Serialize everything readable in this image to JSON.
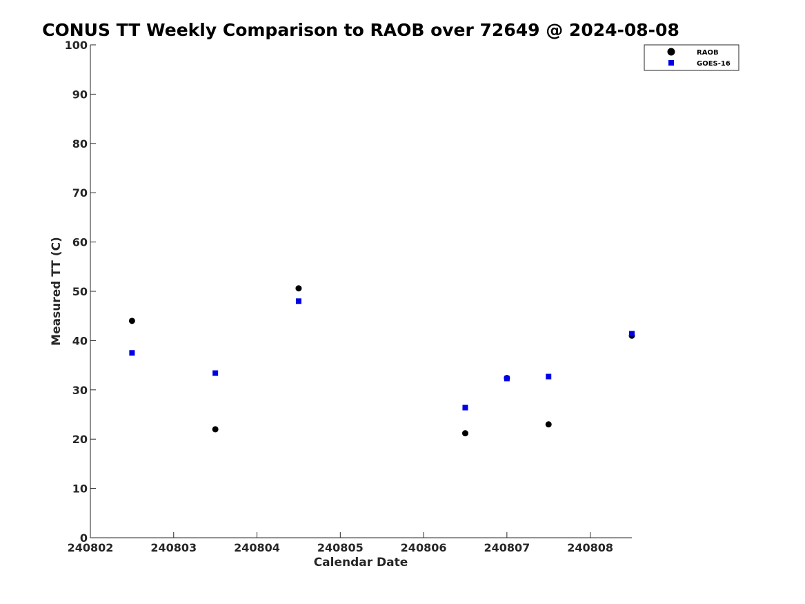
{
  "chart_data": {
    "type": "scatter",
    "title": "CONUS TT Weekly Comparison to RAOB over 72649 @ 2024-08-08",
    "xlabel": "Calendar Date",
    "ylabel": "Measured TT (C)",
    "xlim": [
      "240802",
      "240808.5"
    ],
    "ylim": [
      0,
      100
    ],
    "xticks": [
      "240802",
      "240803",
      "240804",
      "240805",
      "240806",
      "240807",
      "240808"
    ],
    "yticks": [
      0,
      10,
      20,
      30,
      40,
      50,
      60,
      70,
      80,
      90,
      100
    ],
    "grid": false,
    "legend_position": "top-right",
    "series": [
      {
        "name": "RAOB",
        "marker": "circle",
        "color": "#000000",
        "points": [
          {
            "x": 240802.5,
            "y": 44.0
          },
          {
            "x": 240803.5,
            "y": 22.0
          },
          {
            "x": 240804.5,
            "y": 50.6
          },
          {
            "x": 240806.5,
            "y": 21.2
          },
          {
            "x": 240807.0,
            "y": 32.4
          },
          {
            "x": 240807.5,
            "y": 23.0
          },
          {
            "x": 240808.5,
            "y": 41.0
          }
        ]
      },
      {
        "name": "GOES-16",
        "marker": "square",
        "color": "#0000e6",
        "points": [
          {
            "x": 240802.5,
            "y": 37.5
          },
          {
            "x": 240803.5,
            "y": 33.4
          },
          {
            "x": 240804.5,
            "y": 48.0
          },
          {
            "x": 240806.5,
            "y": 26.4
          },
          {
            "x": 240807.0,
            "y": 32.3
          },
          {
            "x": 240807.5,
            "y": 32.7
          },
          {
            "x": 240808.5,
            "y": 41.4
          }
        ]
      }
    ]
  }
}
